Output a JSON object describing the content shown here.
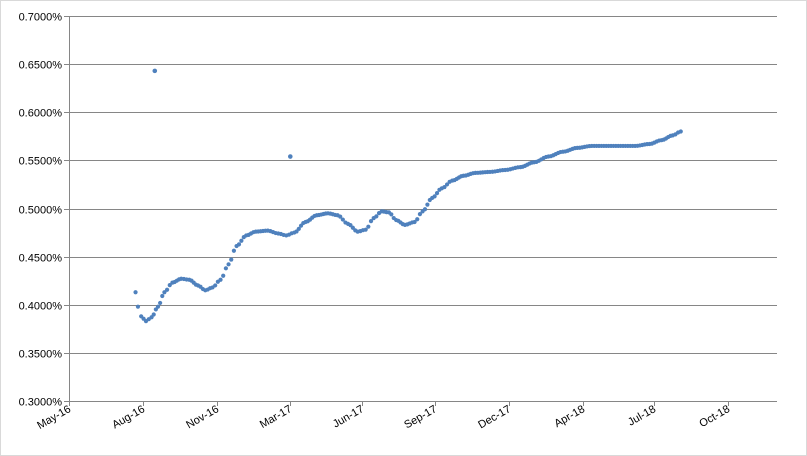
{
  "chart_data": {
    "type": "scatter",
    "title": "",
    "xlabel": "",
    "ylabel": "",
    "grid": true,
    "legend": "none",
    "xlim": [
      "2016-05-01",
      "2018-10-01"
    ],
    "ylim": [
      0.003,
      0.007
    ],
    "y_ticks": [
      "0.3000%",
      "0.3500%",
      "0.4000%",
      "0.4500%",
      "0.5000%",
      "0.5500%",
      "0.6000%",
      "0.6500%",
      "0.7000%"
    ],
    "y_tick_values": [
      0.003,
      0.0035,
      0.004,
      0.0045,
      0.005,
      0.0055,
      0.006,
      0.0065,
      0.007
    ],
    "x_ticks": [
      "May-16",
      "Aug-16",
      "Nov-16",
      "Mar-17",
      "Jun-17",
      "Sep-17",
      "Dec-17",
      "Apr-18",
      "Jul-18",
      "Oct-18"
    ],
    "x_tick_dates": [
      "2016-05-01",
      "2016-08-01",
      "2016-11-01",
      "2017-02-01",
      "2017-05-01",
      "2017-08-01",
      "2017-11-01",
      "2018-02-01",
      "2018-05-01",
      "2018-08-01"
    ],
    "colors": {
      "series": "#4f81bd",
      "grid": "#868686",
      "axis": "#868686"
    },
    "series": [
      {
        "points": [
          [
            "2016-07-23",
            0.00413
          ],
          [
            "2016-07-26",
            0.00398
          ],
          [
            "2016-07-30",
            0.00388
          ],
          [
            "2016-08-05",
            0.00383
          ],
          [
            "2016-08-12",
            0.00387
          ],
          [
            "2016-08-16",
            0.00643
          ],
          [
            "2016-08-20",
            0.00398
          ],
          [
            "2016-08-28",
            0.00413
          ],
          [
            "2016-09-07",
            0.00423
          ],
          [
            "2016-09-18",
            0.00427
          ],
          [
            "2016-09-28",
            0.00426
          ],
          [
            "2016-10-09",
            0.0042
          ],
          [
            "2016-10-18",
            0.00415
          ],
          [
            "2016-10-27",
            0.00418
          ],
          [
            "2016-11-06",
            0.00426
          ],
          [
            "2016-11-16",
            0.00442
          ],
          [
            "2016-11-26",
            0.00461
          ],
          [
            "2016-12-08",
            0.00472
          ],
          [
            "2016-12-20",
            0.00476
          ],
          [
            "2017-01-04",
            0.00477
          ],
          [
            "2017-01-17",
            0.00474
          ],
          [
            "2017-01-27",
            0.00472
          ],
          [
            "2017-02-01",
            0.00554
          ],
          [
            "2017-02-06",
            0.00475
          ],
          [
            "2017-02-20",
            0.00486
          ],
          [
            "2017-03-06",
            0.00493
          ],
          [
            "2017-03-20",
            0.00495
          ],
          [
            "2017-04-01",
            0.00493
          ],
          [
            "2017-04-14",
            0.00484
          ],
          [
            "2017-04-26",
            0.00476
          ],
          [
            "2017-05-06",
            0.00478
          ],
          [
            "2017-05-16",
            0.0049
          ],
          [
            "2017-05-26",
            0.00497
          ],
          [
            "2017-06-04",
            0.00496
          ],
          [
            "2017-06-13",
            0.00488
          ],
          [
            "2017-06-24",
            0.00483
          ],
          [
            "2017-07-06",
            0.00486
          ],
          [
            "2017-07-16",
            0.00497
          ],
          [
            "2017-07-28",
            0.00511
          ],
          [
            "2017-08-09",
            0.00521
          ],
          [
            "2017-08-22",
            0.00529
          ],
          [
            "2017-09-05",
            0.00534
          ],
          [
            "2017-09-20",
            0.00537
          ],
          [
            "2017-10-08",
            0.00538
          ],
          [
            "2017-10-27",
            0.0054
          ],
          [
            "2017-11-15",
            0.00543
          ],
          [
            "2017-12-02",
            0.00548
          ],
          [
            "2017-12-20",
            0.00554
          ],
          [
            "2018-01-07",
            0.00559
          ],
          [
            "2018-01-25",
            0.00563
          ],
          [
            "2018-02-12",
            0.00565
          ],
          [
            "2018-03-02",
            0.00565
          ],
          [
            "2018-03-20",
            0.00565
          ],
          [
            "2018-04-07",
            0.00565
          ],
          [
            "2018-04-25",
            0.00567
          ],
          [
            "2018-05-10",
            0.00571
          ],
          [
            "2018-05-24",
            0.00576
          ],
          [
            "2018-06-03",
            0.0058
          ]
        ]
      }
    ]
  }
}
